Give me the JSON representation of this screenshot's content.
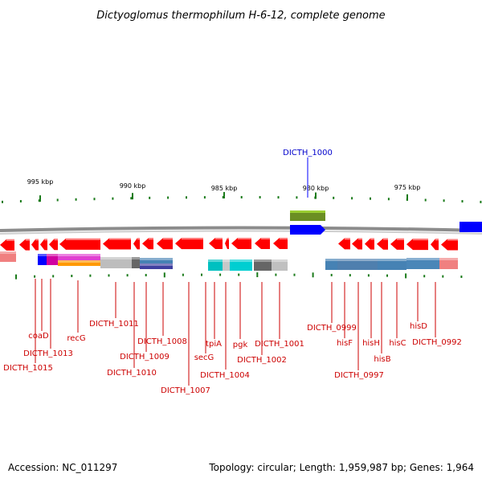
{
  "title": "Dictyoglomus thermophilum H-6-12, complete genome",
  "footer": {
    "accession": "Accession: NC_011297",
    "summary": "Topology: circular; Length: 1,959,987 bp; Genes: 1,964"
  },
  "colors": {
    "background": "#ffffff",
    "backbone": "#8c8c8c",
    "tick": "#1a7a1a",
    "gene_forward_selected": "#0000ff",
    "gene_reverse": "#ff0000",
    "label": "#cc0000",
    "selected_label": "#0000cc",
    "rna_feature": "#6b8e23"
  },
  "scale": {
    "unit": "kbp",
    "major_ticks": [
      {
        "value": 995,
        "label": "995 kbp"
      },
      {
        "value": 990,
        "label": "990 kbp"
      },
      {
        "value": 985,
        "label": "985 kbp"
      },
      {
        "value": 980,
        "label": "980 kbp"
      },
      {
        "value": 975,
        "label": "975 kbp"
      }
    ]
  },
  "selected_gene": {
    "label": "DICTH_1000",
    "strand": "forward"
  },
  "gene_labels": [
    "coaD",
    "DICTH_1013",
    "DICTH_1015",
    "recG",
    "DICTH_1011",
    "DICTH_1009",
    "DICTH_1010",
    "DICTH_1008",
    "DICTH_1007",
    "secG",
    "tpiA",
    "DICTH_1004",
    "pgk",
    "DICTH_1001",
    "DICTH_1002",
    "DICTH_0999",
    "hisF",
    "DICTH_0997",
    "hisH",
    "hisB",
    "hisC",
    "hisD",
    "DICTH_0992"
  ]
}
